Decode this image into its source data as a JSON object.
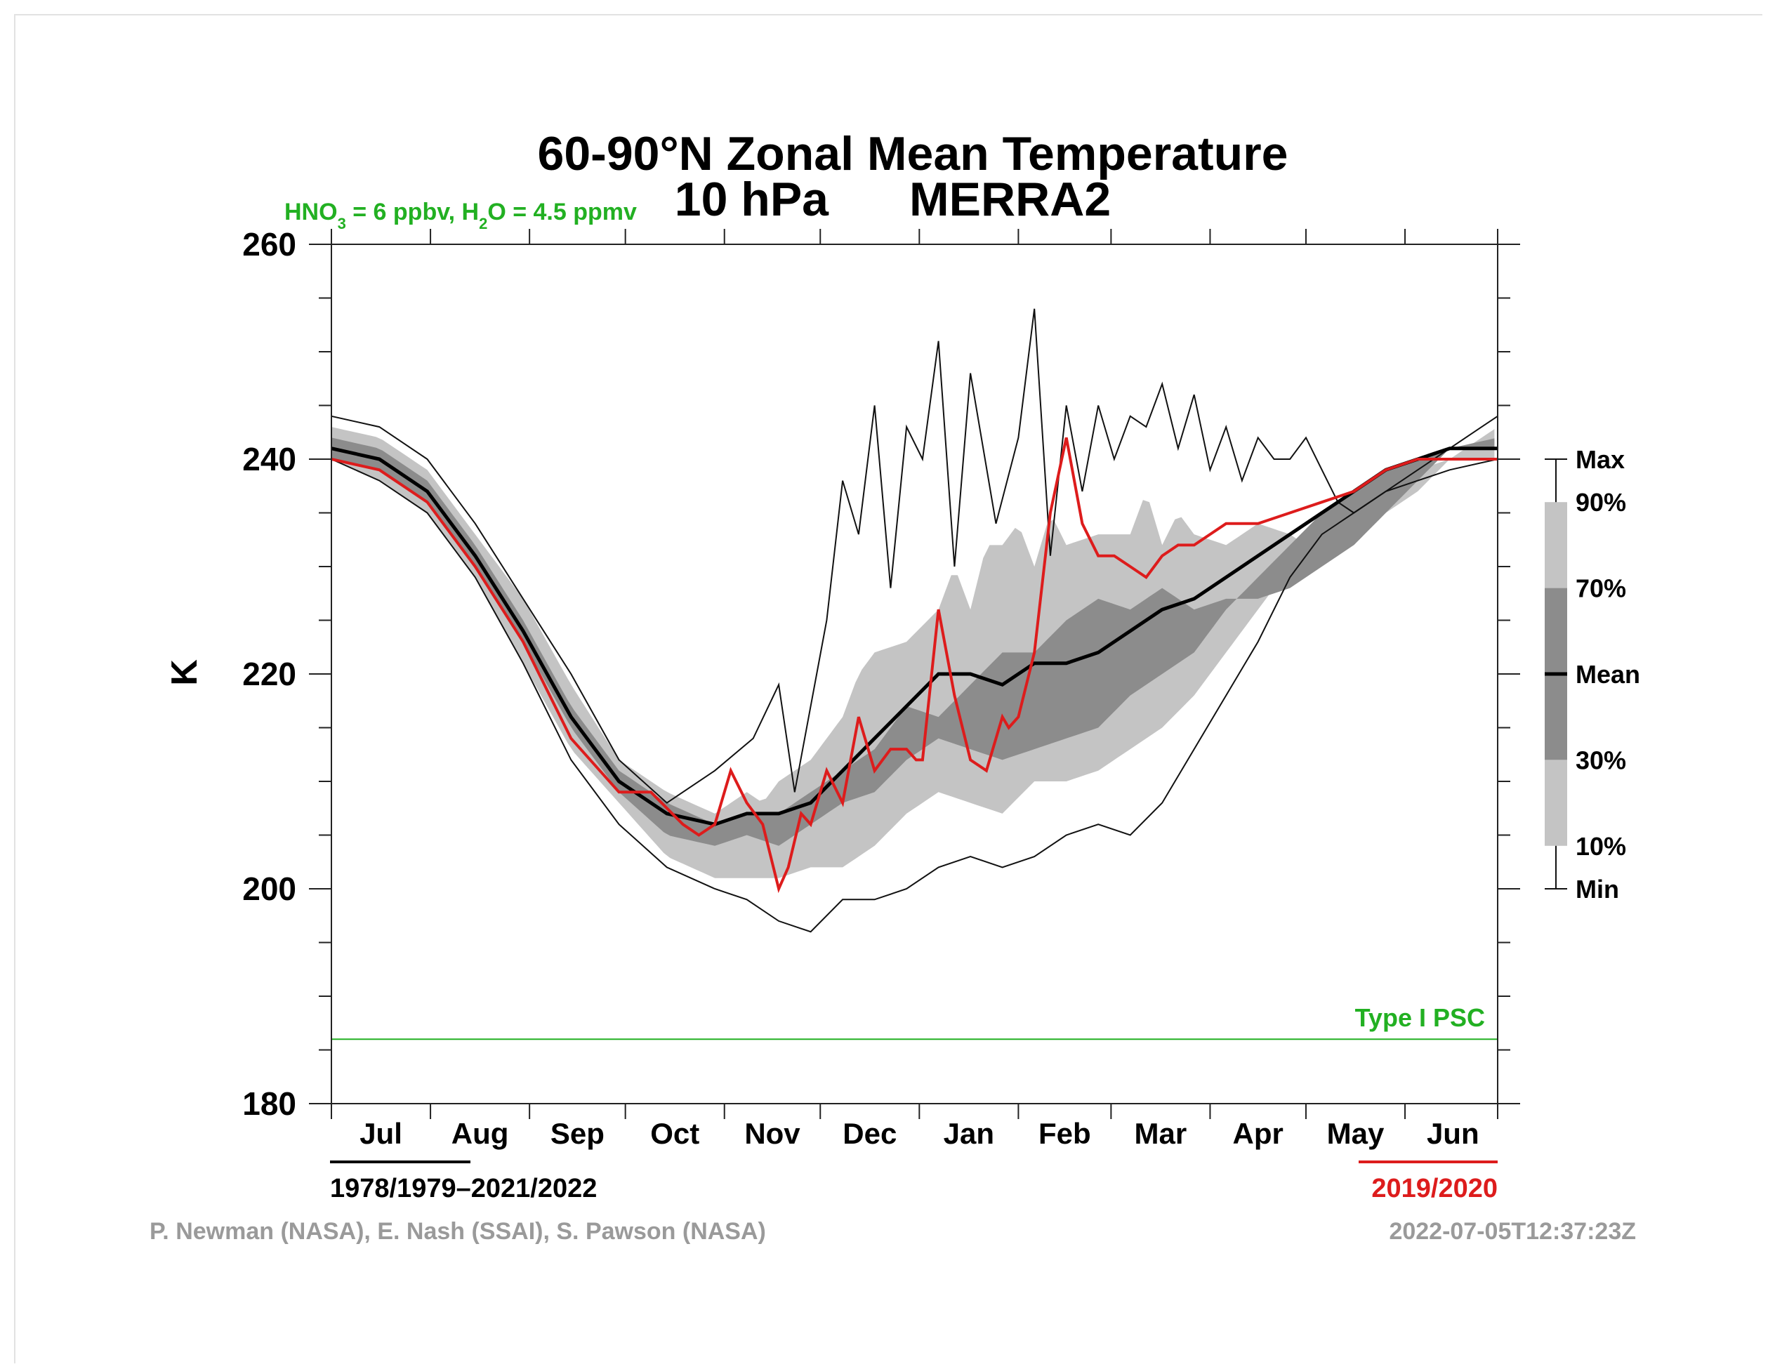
{
  "chart_data": {
    "type": "area",
    "title": "60-90°N Zonal Mean Temperature",
    "subtitle_left": "10 hPa",
    "subtitle_right": "MERRA2",
    "psc_note": {
      "hno3_prefix": "HNO",
      "hno3_sub": "3",
      "hno3_value": " = 6 ppbv, H",
      "h2o_sub": "2",
      "h2o_value": "O = 4.5 ppmv"
    },
    "ylabel": "K",
    "ylim": [
      180,
      260
    ],
    "yticks": [
      "180",
      "200",
      "220",
      "240",
      "260"
    ],
    "months": [
      "Jul",
      "Aug",
      "Sep",
      "Oct",
      "Nov",
      "Dec",
      "Jan",
      "Feb",
      "Mar",
      "Apr",
      "May",
      "Jun"
    ],
    "x_unit": "day of year starting 1 July",
    "x_range": [
      0,
      365
    ],
    "psc_threshold": 186,
    "psc_label": "Type I PSC",
    "climatology_period": "1978/1979–2021/2022",
    "highlight_year": "2019/2020",
    "credits": "P. Newman (NASA), E. Nash (SSAI), S. Pawson (NASA)",
    "timestamp": "2022-07-05T12:37:23Z",
    "legend_labels": [
      "Max",
      "90%",
      "70%",
      "Mean",
      "30%",
      "10%",
      "Min"
    ],
    "colors": {
      "mean": "#000000",
      "band_10_90": "#c4c4c4",
      "band_30_70": "#8c8c8c",
      "year": "#dd1c1c",
      "psc": "#22b022"
    },
    "series": [
      {
        "name": "Max",
        "x": [
          0,
          15,
          30,
          45,
          60,
          75,
          90,
          105,
          120,
          132,
          140,
          145,
          155,
          160,
          165,
          170,
          175,
          180,
          185,
          190,
          195,
          200,
          208,
          215,
          220,
          225,
          230,
          235,
          240,
          245,
          250,
          255,
          260,
          265,
          270,
          275,
          280,
          285,
          290,
          295,
          300,
          305,
          310,
          315,
          320,
          330,
          340,
          350,
          360,
          365
        ],
        "values": [
          244,
          243,
          240,
          234,
          227,
          220,
          212,
          208,
          211,
          214,
          219,
          209,
          225,
          238,
          233,
          245,
          228,
          243,
          240,
          251,
          230,
          248,
          234,
          242,
          254,
          231,
          245,
          237,
          245,
          240,
          244,
          243,
          247,
          241,
          246,
          239,
          243,
          238,
          242,
          240,
          240,
          242,
          239,
          236,
          235,
          237,
          239,
          241,
          243,
          244
        ]
      },
      {
        "name": "P90",
        "x": [
          0,
          15,
          30,
          45,
          60,
          75,
          90,
          105,
          120,
          130,
          135,
          140,
          150,
          160,
          165,
          170,
          180,
          190,
          195,
          200,
          205,
          210,
          215,
          220,
          225,
          230,
          240,
          250,
          255,
          260,
          265,
          270,
          280,
          290,
          300,
          305,
          310,
          320,
          330,
          340,
          350,
          365
        ],
        "values": [
          243,
          242,
          239,
          233,
          227,
          219,
          212,
          209,
          207,
          209,
          208,
          210,
          212,
          216,
          220,
          222,
          223,
          226,
          230,
          226,
          232,
          232,
          234,
          230,
          235,
          232,
          233,
          233,
          237,
          232,
          235,
          233,
          232,
          234,
          233,
          232,
          231,
          232,
          235,
          237,
          240,
          243
        ]
      },
      {
        "name": "P70",
        "x": [
          0,
          15,
          30,
          45,
          60,
          75,
          90,
          105,
          120,
          130,
          140,
          150,
          160,
          170,
          175,
          180,
          190,
          200,
          210,
          220,
          230,
          240,
          250,
          260,
          270,
          280,
          290,
          300,
          310,
          320,
          330,
          340,
          350,
          365
        ],
        "values": [
          242,
          241,
          238,
          232,
          225,
          217,
          211,
          208,
          206,
          207,
          207,
          209,
          211,
          213,
          215,
          217,
          216,
          219,
          222,
          222,
          225,
          227,
          226,
          228,
          226,
          227,
          227,
          228,
          230,
          232,
          235,
          238,
          241,
          242
        ]
      },
      {
        "name": "Mean",
        "x": [
          0,
          15,
          30,
          45,
          60,
          75,
          90,
          105,
          120,
          130,
          140,
          150,
          160,
          170,
          180,
          190,
          200,
          210,
          220,
          230,
          240,
          250,
          260,
          270,
          280,
          290,
          300,
          310,
          320,
          330,
          340,
          350,
          365
        ],
        "values": [
          241,
          240,
          237,
          231,
          224,
          216,
          210,
          207,
          206,
          207,
          207,
          208,
          211,
          214,
          217,
          220,
          220,
          219,
          221,
          221,
          222,
          224,
          226,
          227,
          229,
          231,
          233,
          235,
          237,
          239,
          240,
          241,
          241
        ]
      },
      {
        "name": "P30",
        "x": [
          0,
          15,
          30,
          45,
          60,
          75,
          90,
          105,
          120,
          130,
          140,
          150,
          160,
          170,
          180,
          190,
          200,
          210,
          220,
          230,
          240,
          250,
          260,
          270,
          280,
          290,
          300,
          310,
          320,
          330,
          340,
          350,
          365
        ],
        "values": [
          240,
          239,
          236,
          230,
          223,
          215,
          209,
          205,
          204,
          205,
          204,
          206,
          208,
          209,
          212,
          214,
          213,
          212,
          213,
          214,
          215,
          218,
          220,
          222,
          226,
          229,
          232,
          235,
          237,
          239,
          240,
          241,
          241
        ]
      },
      {
        "name": "P10",
        "x": [
          0,
          15,
          30,
          45,
          60,
          75,
          90,
          105,
          120,
          130,
          140,
          150,
          160,
          170,
          180,
          190,
          200,
          210,
          220,
          230,
          240,
          250,
          260,
          270,
          280,
          290,
          300,
          310,
          320,
          330,
          340,
          350,
          365
        ],
        "values": [
          240,
          238,
          235,
          229,
          221,
          213,
          208,
          203,
          201,
          201,
          201,
          202,
          202,
          204,
          207,
          209,
          208,
          207,
          210,
          210,
          211,
          213,
          215,
          218,
          222,
          226,
          230,
          234,
          236,
          238,
          239,
          240,
          240
        ]
      },
      {
        "name": "Min",
        "x": [
          0,
          15,
          30,
          45,
          60,
          75,
          90,
          105,
          120,
          130,
          140,
          150,
          160,
          170,
          180,
          190,
          200,
          210,
          220,
          230,
          240,
          250,
          260,
          270,
          280,
          290,
          300,
          310,
          320,
          330,
          340,
          350,
          365
        ],
        "values": [
          240,
          238,
          235,
          229,
          221,
          212,
          206,
          202,
          200,
          199,
          197,
          196,
          199,
          199,
          200,
          202,
          203,
          202,
          203,
          205,
          206,
          205,
          208,
          213,
          218,
          223,
          229,
          233,
          235,
          237,
          238,
          239,
          240
        ]
      },
      {
        "name": "2019/2020",
        "x": [
          0,
          15,
          30,
          45,
          60,
          75,
          90,
          100,
          110,
          115,
          120,
          125,
          130,
          135,
          140,
          143,
          147,
          150,
          155,
          160,
          165,
          170,
          175,
          180,
          183,
          185,
          190,
          195,
          200,
          205,
          210,
          212,
          215,
          220,
          225,
          230,
          235,
          240,
          245,
          250,
          255,
          260,
          265,
          270,
          275,
          280,
          290,
          300,
          310,
          320,
          330,
          340,
          350,
          365
        ],
        "values": [
          240,
          239,
          236,
          230,
          223,
          214,
          209,
          209,
          206,
          205,
          206,
          211,
          208,
          206,
          200,
          202,
          207,
          206,
          211,
          208,
          216,
          211,
          213,
          213,
          212,
          212,
          226,
          218,
          212,
          211,
          216,
          215,
          216,
          222,
          235,
          242,
          234,
          231,
          231,
          230,
          229,
          231,
          232,
          232,
          233,
          234,
          234,
          235,
          236,
          237,
          239,
          240,
          240,
          240
        ]
      }
    ]
  }
}
